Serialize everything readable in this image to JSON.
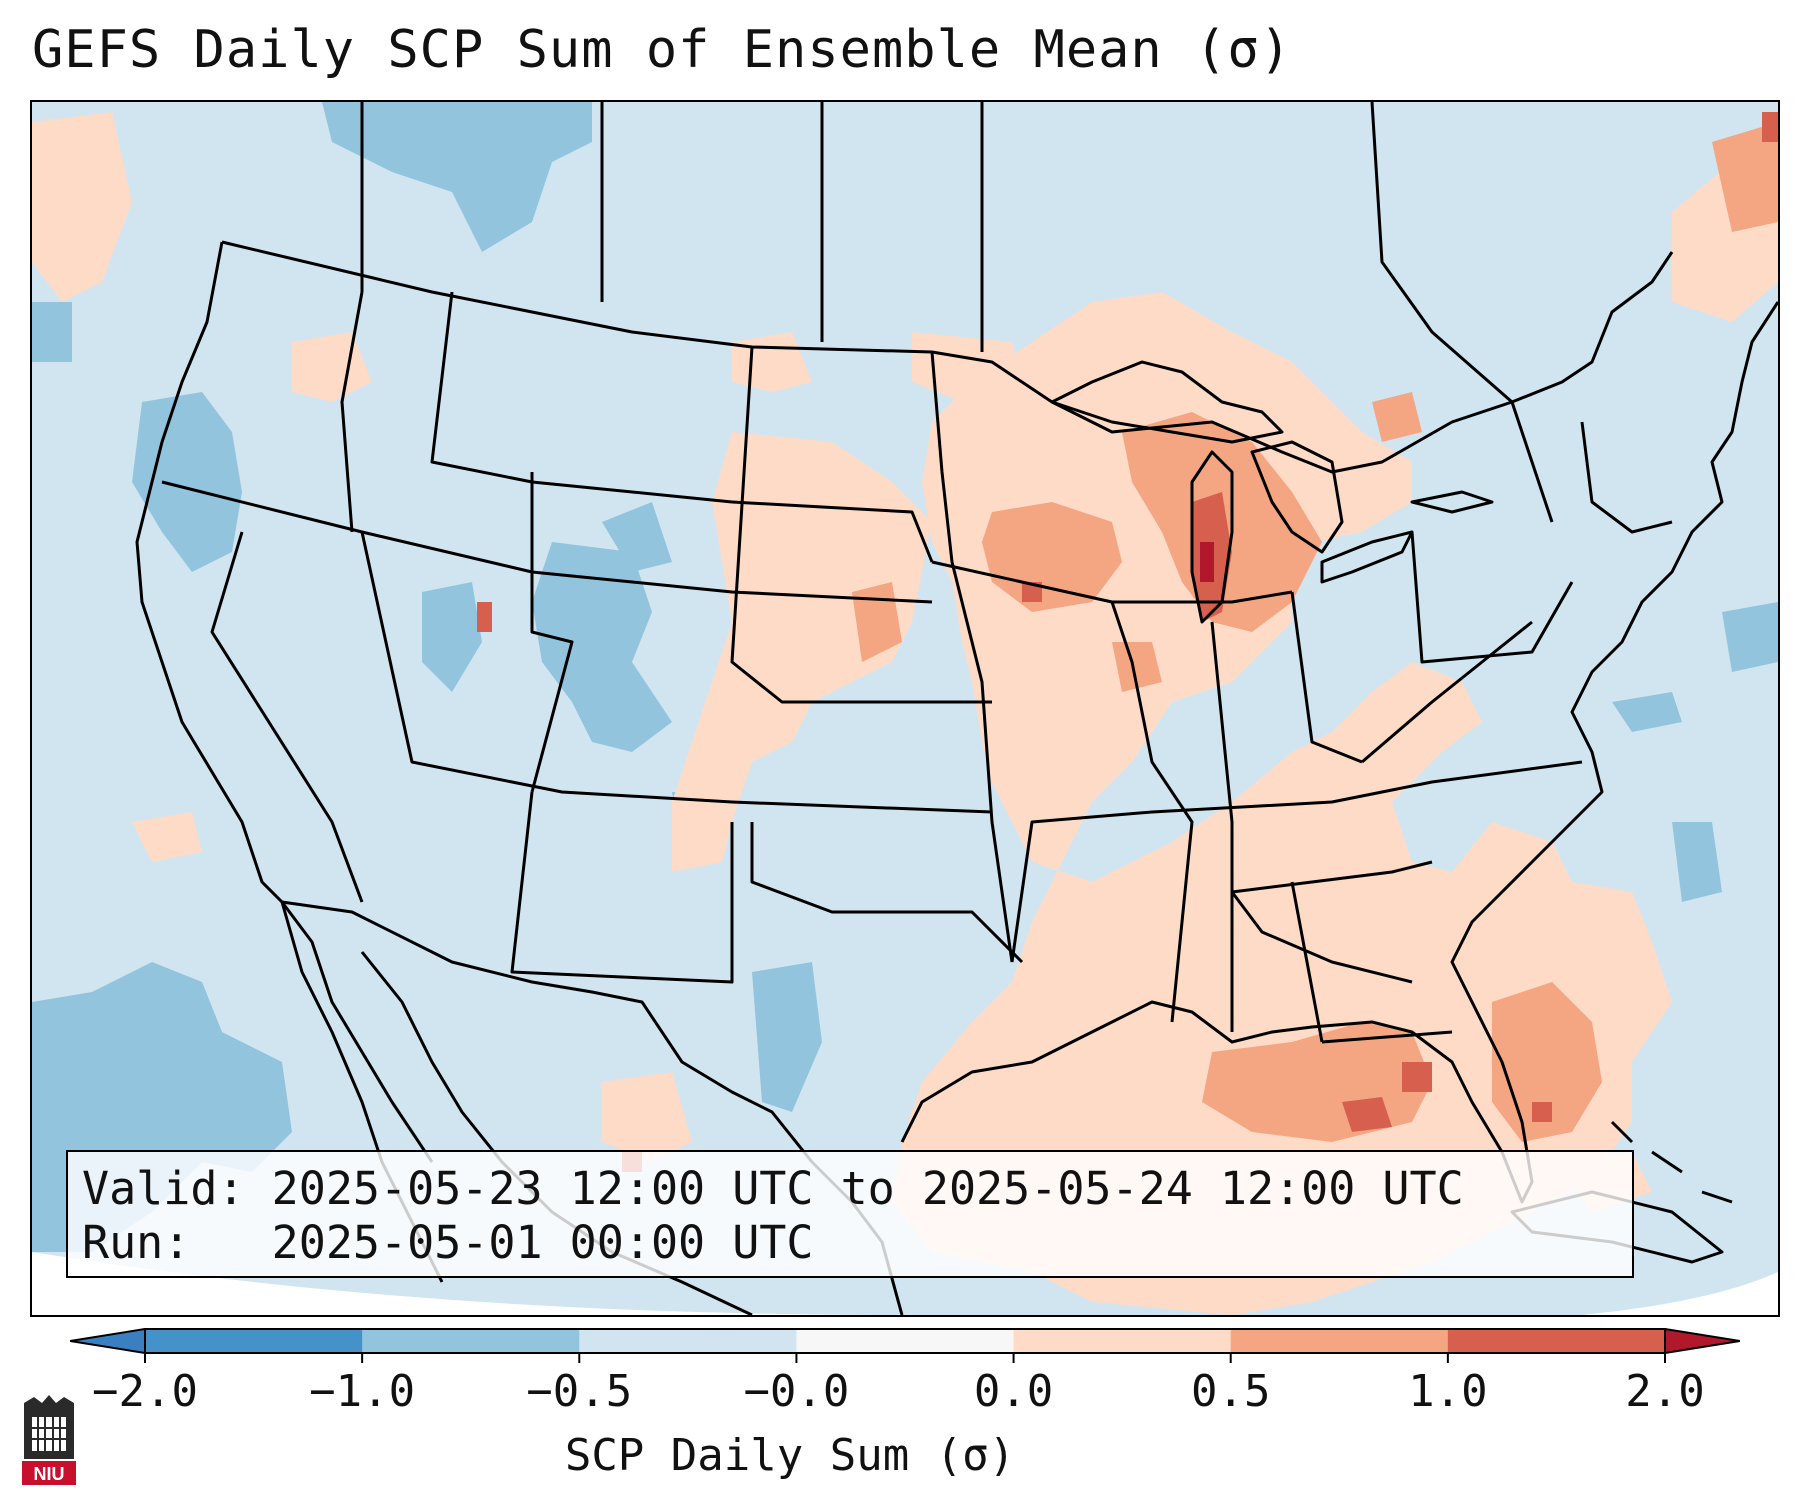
{
  "title": "GEFS Daily SCP Sum of Ensemble Mean (σ)",
  "info": {
    "valid_line": "Valid: 2025-05-23 12:00 UTC to 2025-05-24 12:00 UTC",
    "run_line": "Run:   2025-05-01 00:00 UTC"
  },
  "colorbar": {
    "label": "SCP Daily Sum (σ)",
    "ticks": [
      "−2.0",
      "−1.0",
      "−0.5",
      "−0.0",
      "0.0",
      "0.5",
      "1.0",
      "2.0"
    ],
    "bins": [
      {
        "range": "< -2.0",
        "color": "#3a80c0"
      },
      {
        "range": "-2.0 to -1.0",
        "color": "#4592c8"
      },
      {
        "range": "-1.0 to -0.5",
        "color": "#92c4de"
      },
      {
        "range": "-0.5 to -0.0",
        "color": "#d1e5f0"
      },
      {
        "range": "-0.0 to 0.0",
        "color": "#f7f7f7"
      },
      {
        "range": "0.0 to 0.5",
        "color": "#fddbc7"
      },
      {
        "range": "0.5 to 1.0",
        "color": "#f4a582"
      },
      {
        "range": "1.0 to 2.0",
        "color": "#d6604d"
      },
      {
        "range": "> 2.0",
        "color": "#b2182b"
      }
    ]
  },
  "map": {
    "background_color": "#d1e5f0",
    "outline_color": "#000000",
    "regions": [
      {
        "name": "great-lakes-midwest",
        "level": "0.5 to 1.0"
      },
      {
        "name": "lake-michigan",
        "level": "1.0 to 2.0"
      },
      {
        "name": "gulf-coast",
        "level": "0.5 to 1.0"
      },
      {
        "name": "southeast-atlantic",
        "level": "0.5 to 1.0"
      },
      {
        "name": "southern-plains",
        "level": "0.0 to 0.5"
      },
      {
        "name": "northeast-quebec",
        "level": "0.5 to 1.0"
      },
      {
        "name": "intermountain-west",
        "level": "-1.0 to -0.5"
      },
      {
        "name": "mexico-pacific",
        "level": "-1.0 to -0.5"
      }
    ]
  },
  "logo": {
    "text": "NIU"
  }
}
